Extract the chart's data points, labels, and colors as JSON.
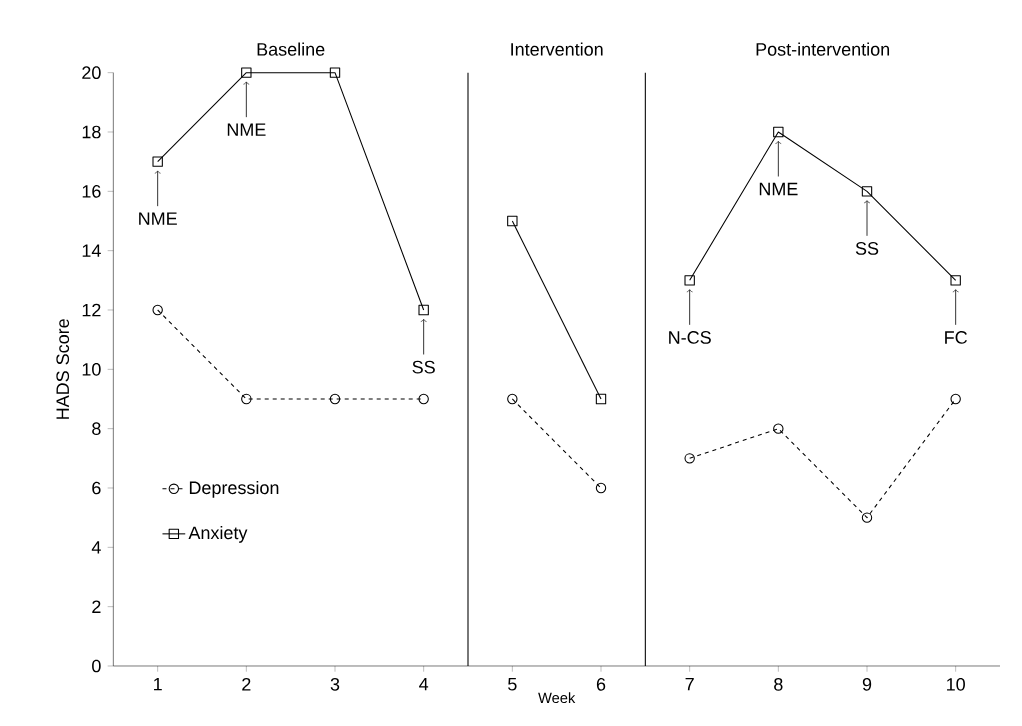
{
  "chart_data": {
    "type": "line",
    "xlabel": "Week",
    "ylabel": "HADS Score",
    "xlim": [
      0.5,
      10.5
    ],
    "xticks": [
      1,
      2,
      3,
      4,
      5,
      6,
      7,
      8,
      9,
      10
    ],
    "ylim": [
      0,
      20
    ],
    "yticks": [
      0,
      2,
      4,
      6,
      8,
      10,
      12,
      14,
      16,
      18,
      20
    ],
    "grid": false,
    "legend": "left",
    "series": [
      {
        "name": "Depression",
        "color": "#000000",
        "marker": "circle",
        "line_style": "dashed",
        "x": [
          1,
          2,
          3,
          4
        ],
        "values": [
          12,
          9,
          9,
          9
        ]
      },
      {
        "name": "Anxiety",
        "color": "#000000",
        "marker": "square",
        "line_style": "solid",
        "x": [
          1,
          2,
          3,
          4
        ],
        "values": [
          17,
          20,
          20,
          12
        ]
      },
      {
        "color": "#000000",
        "marker": "circle",
        "line_style": "dashed",
        "x": [
          5,
          6
        ],
        "values": [
          9,
          6
        ]
      },
      {
        "color": "#000000",
        "marker": "square",
        "line_style": "solid",
        "x": [
          5,
          6
        ],
        "values": [
          15,
          9
        ]
      },
      {
        "color": "#000000",
        "marker": "circle",
        "line_style": "dashed",
        "x": [
          7,
          8,
          9,
          10
        ],
        "values": [
          7,
          8,
          5,
          9
        ]
      },
      {
        "color": "#000000",
        "marker": "square",
        "line_style": "solid",
        "x": [
          7,
          8,
          9,
          10
        ],
        "values": [
          13,
          18,
          16,
          13
        ]
      }
    ],
    "ref_lines": [
      {
        "axis": "x",
        "value": 4.5
      },
      {
        "axis": "x",
        "value": 6.5
      }
    ],
    "annotations": [
      "Baseline",
      "Intervention",
      "Post-intervention",
      {
        "text": "NME",
        "x": 1,
        "y": 17
      },
      {
        "text": "NME",
        "x": 2,
        "y": 20
      },
      {
        "text": "SS",
        "x": 4,
        "y": 12
      },
      {
        "text": "N-CS",
        "x": 7,
        "y": 13
      },
      {
        "text": "NME",
        "x": 8,
        "y": 18
      },
      {
        "text": "SS",
        "x": 9,
        "y": 16
      },
      {
        "text": "FC",
        "x": 10,
        "y": 13
      }
    ]
  }
}
